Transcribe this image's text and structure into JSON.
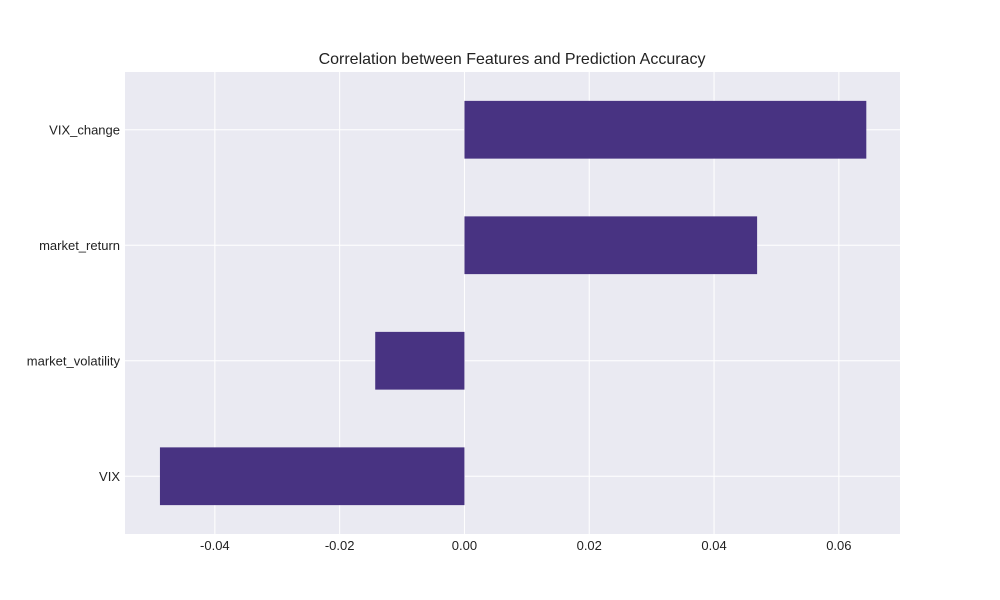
{
  "chart_data": {
    "type": "bar",
    "orientation": "horizontal",
    "title": "Correlation between Features and Prediction Accuracy",
    "xlabel": "",
    "ylabel": "",
    "categories": [
      "VIX",
      "market_volatility",
      "market_return",
      "VIX_change"
    ],
    "values": [
      -0.0488,
      -0.0143,
      0.0469,
      0.0644
    ],
    "xlim": [
      -0.0544,
      0.0698
    ],
    "xticks": [
      -0.04,
      -0.02,
      0.0,
      0.02,
      0.04,
      0.06
    ],
    "xtick_labels": [
      "-0.04",
      "-0.02",
      "0.00",
      "0.02",
      "0.04",
      "0.06"
    ],
    "grid": true,
    "legend": "none",
    "colors": {
      "bar": "#483382",
      "plot_background": "#eaeaf2",
      "grid": "#ffffff",
      "text": "#222222"
    }
  }
}
